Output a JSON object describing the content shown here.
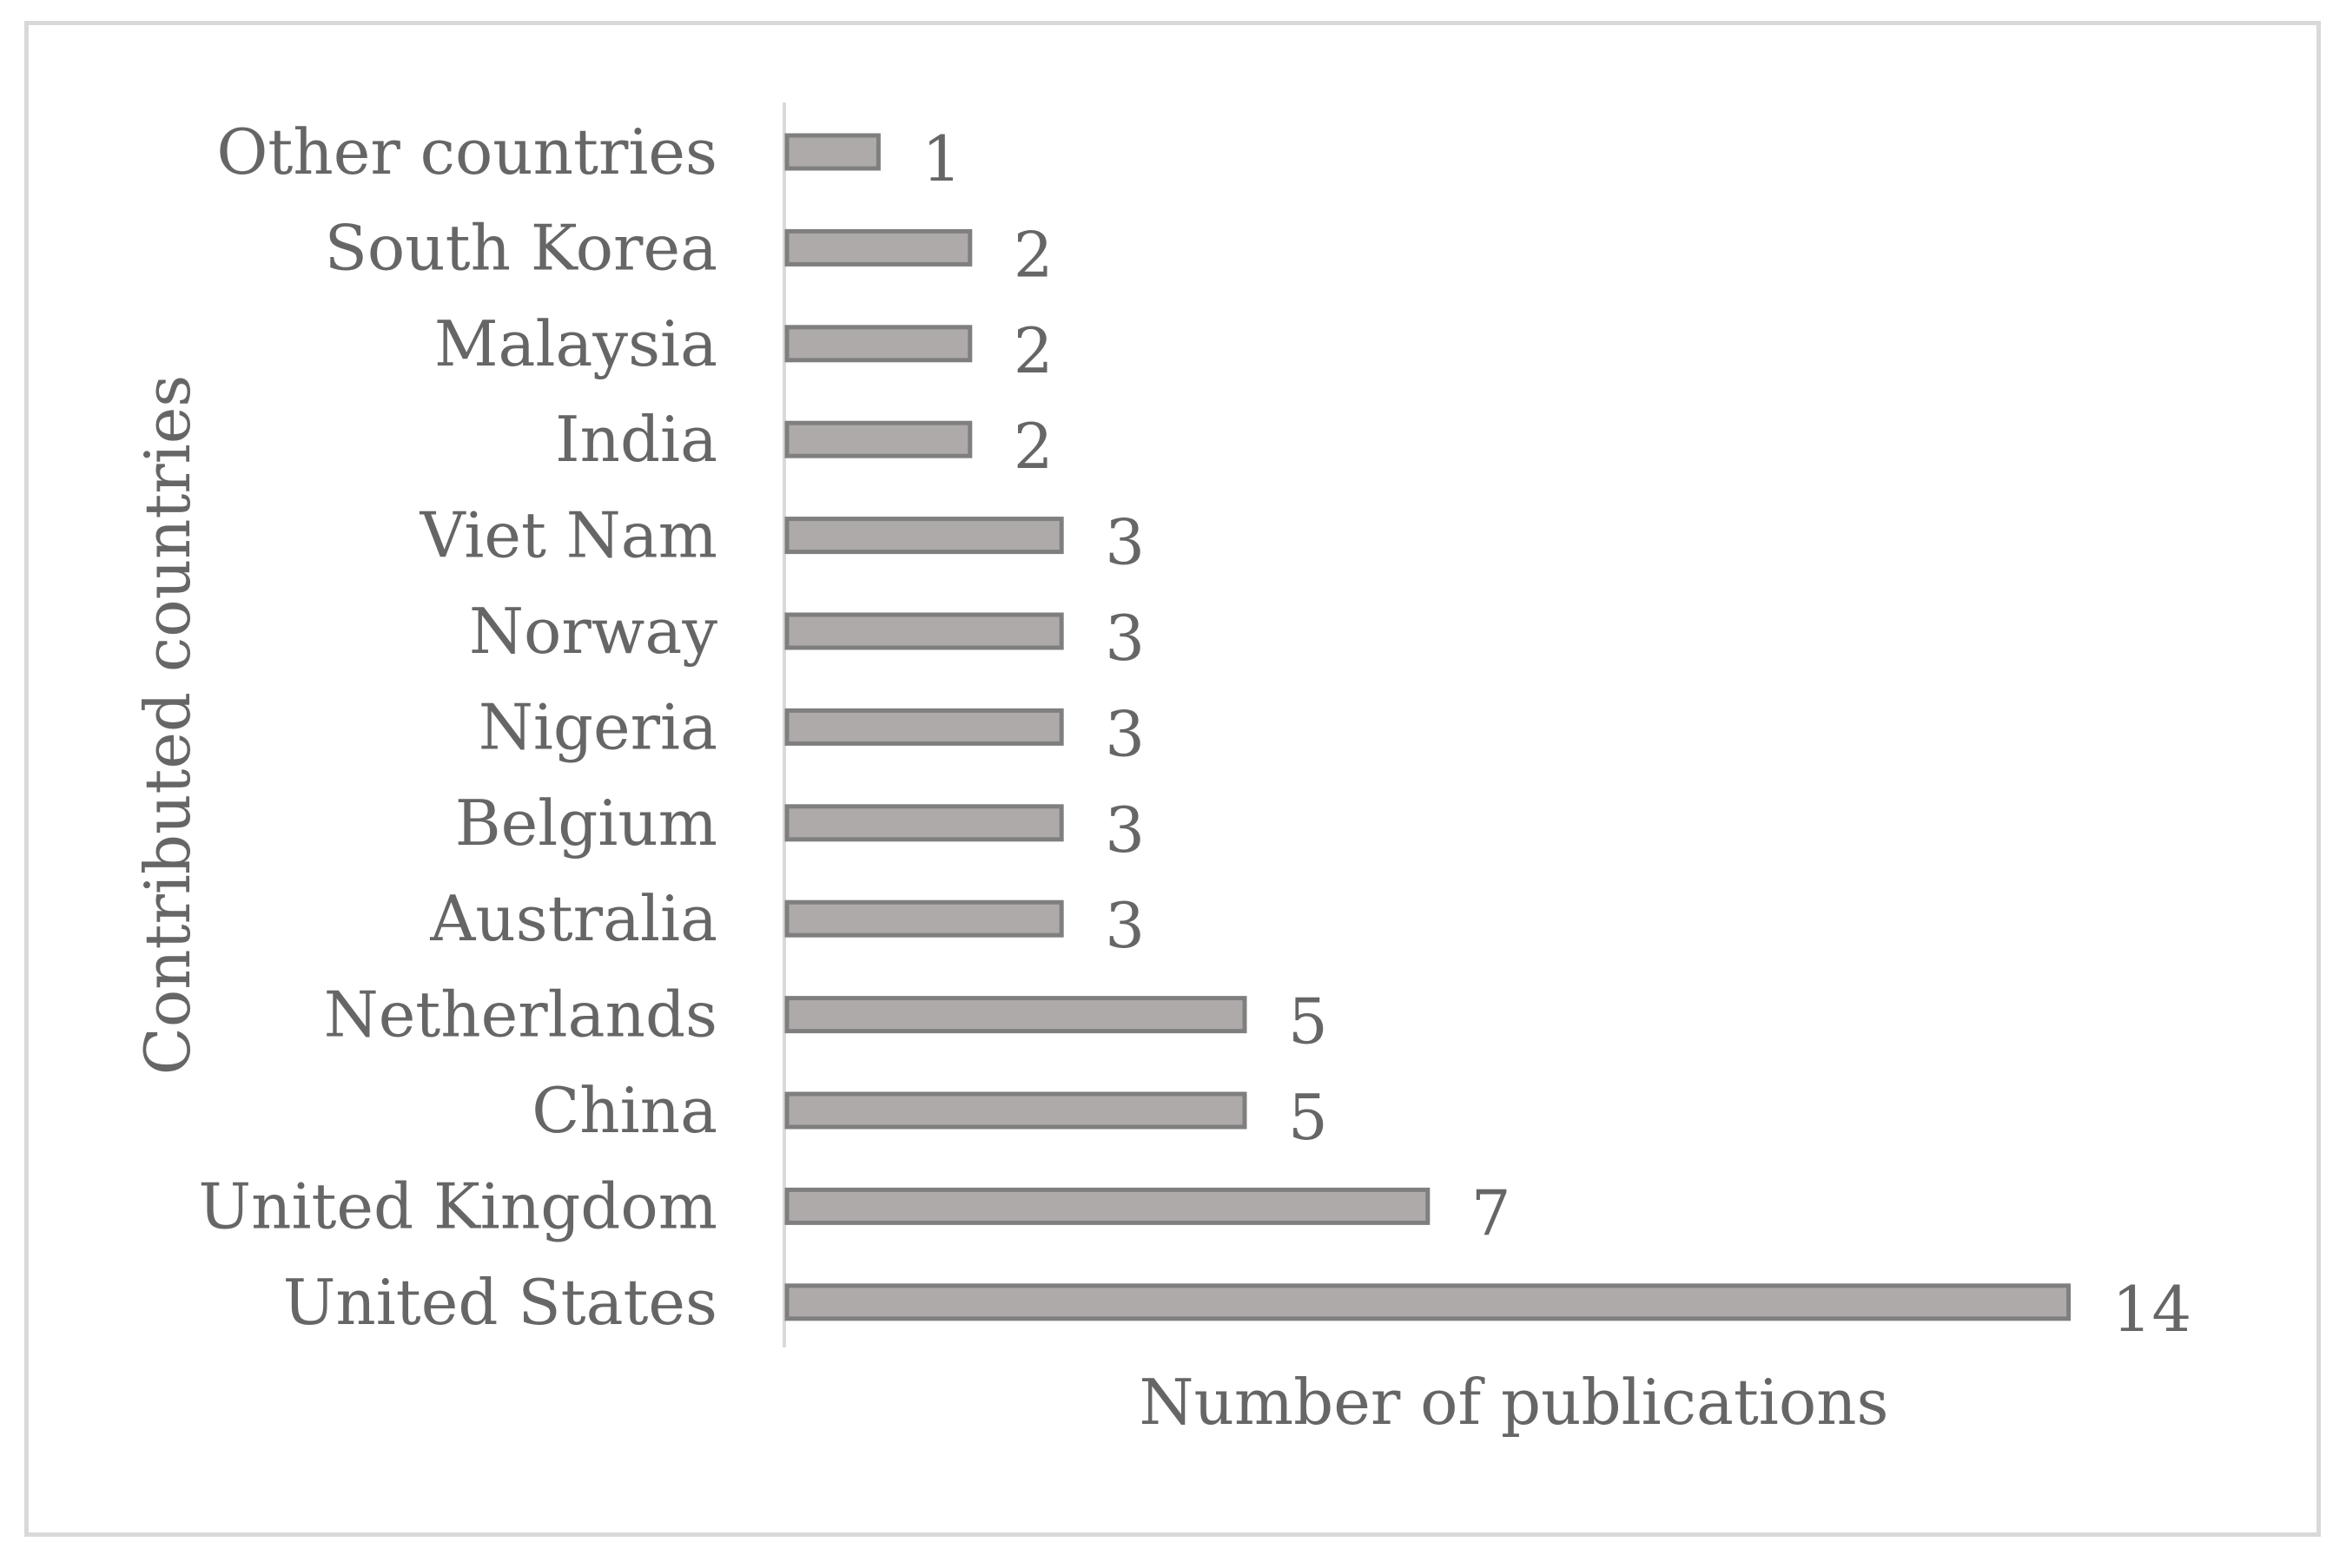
{
  "chart_data": {
    "type": "bar",
    "orientation": "horizontal",
    "categories": [
      "Other countries",
      "South Korea",
      "Malaysia",
      "India",
      "Viet Nam",
      "Norway",
      "Nigeria",
      "Belgium",
      "Australia",
      "Netherlands",
      "China",
      "United Kingdom",
      "United States"
    ],
    "values": [
      1,
      2,
      2,
      2,
      3,
      3,
      3,
      3,
      3,
      5,
      5,
      7,
      14
    ],
    "xlabel": "Number of publications",
    "ylabel": "Contributed countries",
    "xlim": [
      0,
      14
    ],
    "grid": false,
    "legend": "none",
    "data_labels": true,
    "colors": {
      "bar_fill": "#aeaaaa",
      "bar_stroke": "#7f7f7f",
      "text": "#666666",
      "axis_line": "#d9d9d9",
      "frame": "#d9d9d9"
    }
  }
}
